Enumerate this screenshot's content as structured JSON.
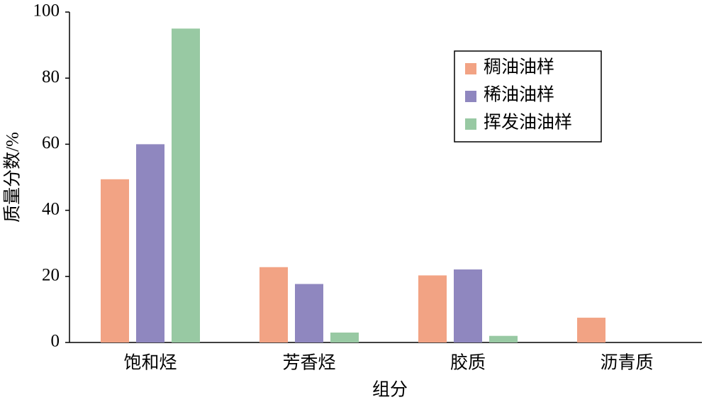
{
  "chart_data": {
    "type": "bar",
    "x_label": "组分",
    "y_label": "质量分数/%",
    "categories": [
      "饱和烃",
      "芳香烃",
      "胶质",
      "沥青质"
    ],
    "series": [
      {
        "name": "稠油油样",
        "color": "#f2a384",
        "values": [
          49.4,
          22.8,
          20.3,
          7.5
        ]
      },
      {
        "name": "稀油油样",
        "color": "#8f87bf",
        "values": [
          60,
          17.7,
          22.1,
          0
        ]
      },
      {
        "name": "挥发油油样",
        "color": "#98c9a3",
        "values": [
          95,
          3,
          2,
          0
        ]
      }
    ],
    "ylim": [
      0,
      100
    ],
    "yticks": [
      0,
      20,
      40,
      60,
      80,
      100
    ],
    "grid": false,
    "legend": "upper right"
  }
}
